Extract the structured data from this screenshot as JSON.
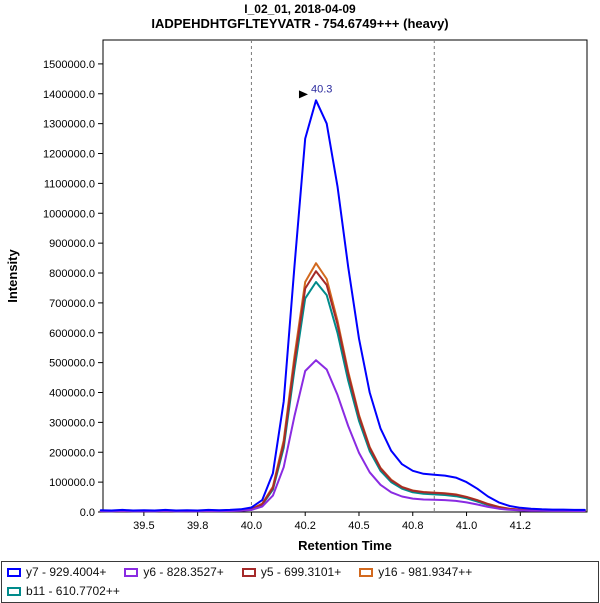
{
  "header": {
    "title": "I_02_01, 2018-04-09",
    "subtitle": "IADPEHDHTGFLTEYVATR - 754.6749+++ (heavy)"
  },
  "chart_data": {
    "type": "line",
    "title": "I_02_01, 2018-04-09",
    "subtitle": "IADPEHDHTGFLTEYVATR - 754.6749+++ (heavy)",
    "xlabel": "Retention Time",
    "ylabel": "Intensity",
    "xlim": [
      39.31,
      41.56
    ],
    "ylim": [
      0,
      1580000
    ],
    "grid": false,
    "legend_position": "bottom",
    "x_ticks": [
      {
        "value": 39.5,
        "label": "39.5"
      },
      {
        "value": 39.75,
        "label": "39.8"
      },
      {
        "value": 40.0,
        "label": "40.0"
      },
      {
        "value": 40.25,
        "label": "40.2"
      },
      {
        "value": 40.5,
        "label": "40.5"
      },
      {
        "value": 40.75,
        "label": "40.8"
      },
      {
        "value": 41.0,
        "label": "41.0"
      },
      {
        "value": 41.25,
        "label": "41.2"
      }
    ],
    "y_ticks": [
      {
        "value": 0,
        "label": "0.0"
      },
      {
        "value": 100000,
        "label": "100000.0"
      },
      {
        "value": 200000,
        "label": "200000.0"
      },
      {
        "value": 300000,
        "label": "300000.0"
      },
      {
        "value": 400000,
        "label": "400000.0"
      },
      {
        "value": 500000,
        "label": "500000.0"
      },
      {
        "value": 600000,
        "label": "600000.0"
      },
      {
        "value": 700000,
        "label": "700000.0"
      },
      {
        "value": 800000,
        "label": "800000.0"
      },
      {
        "value": 900000,
        "label": "900000.0"
      },
      {
        "value": 1000000,
        "label": "1000000.0"
      },
      {
        "value": 1100000,
        "label": "1100000.0"
      },
      {
        "value": 1200000,
        "label": "1200000.0"
      },
      {
        "value": 1300000,
        "label": "1300000.0"
      },
      {
        "value": 1400000,
        "label": "1400000.0"
      },
      {
        "value": 1500000,
        "label": "1500000.0"
      }
    ],
    "peak_boundaries": [
      40.0,
      40.85
    ],
    "peak_annotation": {
      "x": 40.3,
      "y": 1378000,
      "label": "40.3",
      "label_color": "#2a2a9e"
    },
    "x": [
      39.3,
      39.35,
      39.4,
      39.45,
      39.5,
      39.55,
      39.6,
      39.65,
      39.7,
      39.75,
      39.8,
      39.85,
      39.9,
      39.95,
      40.0,
      40.05,
      40.1,
      40.15,
      40.2,
      40.25,
      40.3,
      40.35,
      40.4,
      40.45,
      40.5,
      40.55,
      40.6,
      40.65,
      40.7,
      40.75,
      40.8,
      40.85,
      40.9,
      40.95,
      41.0,
      41.05,
      41.1,
      41.15,
      41.2,
      41.25,
      41.3,
      41.35,
      41.4,
      41.45,
      41.5,
      41.55
    ],
    "series": [
      {
        "name": "y7 - 929.4004+",
        "color": "#0000FF",
        "y": [
          6000,
          5000,
          7000,
          5000,
          6000,
          5000,
          7000,
          5000,
          6000,
          5000,
          7000,
          6000,
          7000,
          9000,
          15000,
          40000,
          130000,
          370000,
          820000,
          1250000,
          1378000,
          1300000,
          1090000,
          820000,
          580000,
          400000,
          280000,
          205000,
          160000,
          138000,
          128000,
          125000,
          122000,
          115000,
          100000,
          78000,
          52000,
          32000,
          20000,
          14000,
          11000,
          9000,
          8000,
          8000,
          7000,
          7000
        ]
      },
      {
        "name": "y6 - 828.3527+",
        "color": "#8A2BE2",
        "y": [
          3000,
          2500,
          3500,
          2500,
          3000,
          2500,
          3500,
          2500,
          3000,
          2500,
          3500,
          3000,
          3500,
          4500,
          7000,
          18000,
          55000,
          150000,
          320000,
          472000,
          508000,
          477000,
          392000,
          288000,
          198000,
          133000,
          91000,
          66000,
          52000,
          45000,
          42000,
          41000,
          40000,
          37000,
          32000,
          25000,
          17000,
          11000,
          7500,
          5500,
          4500,
          4000,
          3800,
          3600,
          3500,
          3400
        ]
      },
      {
        "name": "y5 - 699.3101+",
        "color": "#A52A2A",
        "y": [
          3800,
          3300,
          4300,
          3300,
          3800,
          3300,
          4300,
          3300,
          3800,
          3300,
          4300,
          3800,
          4300,
          5500,
          9000,
          26000,
          80000,
          228000,
          500000,
          748000,
          806000,
          760000,
          628000,
          462000,
          320000,
          215000,
          146000,
          106000,
          83000,
          71000,
          66000,
          64000,
          62000,
          58000,
          50000,
          39000,
          26000,
          16500,
          10500,
          7500,
          6000,
          5000,
          4800,
          4600,
          4400,
          4300
        ]
      },
      {
        "name": "y16 - 981.9347++",
        "color": "#D2691E",
        "y": [
          4000,
          3500,
          4500,
          3500,
          4000,
          3500,
          4500,
          3500,
          4000,
          3500,
          4500,
          4000,
          4500,
          6000,
          10000,
          28000,
          85000,
          240000,
          520000,
          770000,
          833000,
          780000,
          640000,
          470000,
          325000,
          218000,
          148000,
          108000,
          84000,
          72000,
          67000,
          65000,
          63000,
          59000,
          51000,
          40000,
          27000,
          17000,
          11000,
          8000,
          6500,
          5500,
          5000,
          5000,
          4500,
          4500
        ]
      },
      {
        "name": "b11 - 610.7702++",
        "color": "#008B8B",
        "y": [
          3500,
          3000,
          4000,
          3000,
          3500,
          3000,
          4000,
          3000,
          3500,
          3000,
          4000,
          3500,
          4000,
          5000,
          8500,
          24000,
          75000,
          215000,
          475000,
          715000,
          770000,
          726000,
          600000,
          440000,
          305000,
          204000,
          138000,
          100000,
          78000,
          66000,
          61000,
          59000,
          57000,
          53000,
          46000,
          35000,
          23000,
          14500,
          9500,
          7000,
          5500,
          4800,
          4500,
          4300,
          4200,
          4000
        ]
      }
    ]
  },
  "legend": {
    "items": [
      {
        "label": "y7 - 929.4004+",
        "color": "#0000FF"
      },
      {
        "label": "y6 - 828.3527+",
        "color": "#8A2BE2"
      },
      {
        "label": "y5 - 699.3101+",
        "color": "#A52A2A"
      },
      {
        "label": "y16 - 981.9347++",
        "color": "#D2691E"
      },
      {
        "label": "b11 - 610.7702++",
        "color": "#008B8B"
      }
    ]
  }
}
